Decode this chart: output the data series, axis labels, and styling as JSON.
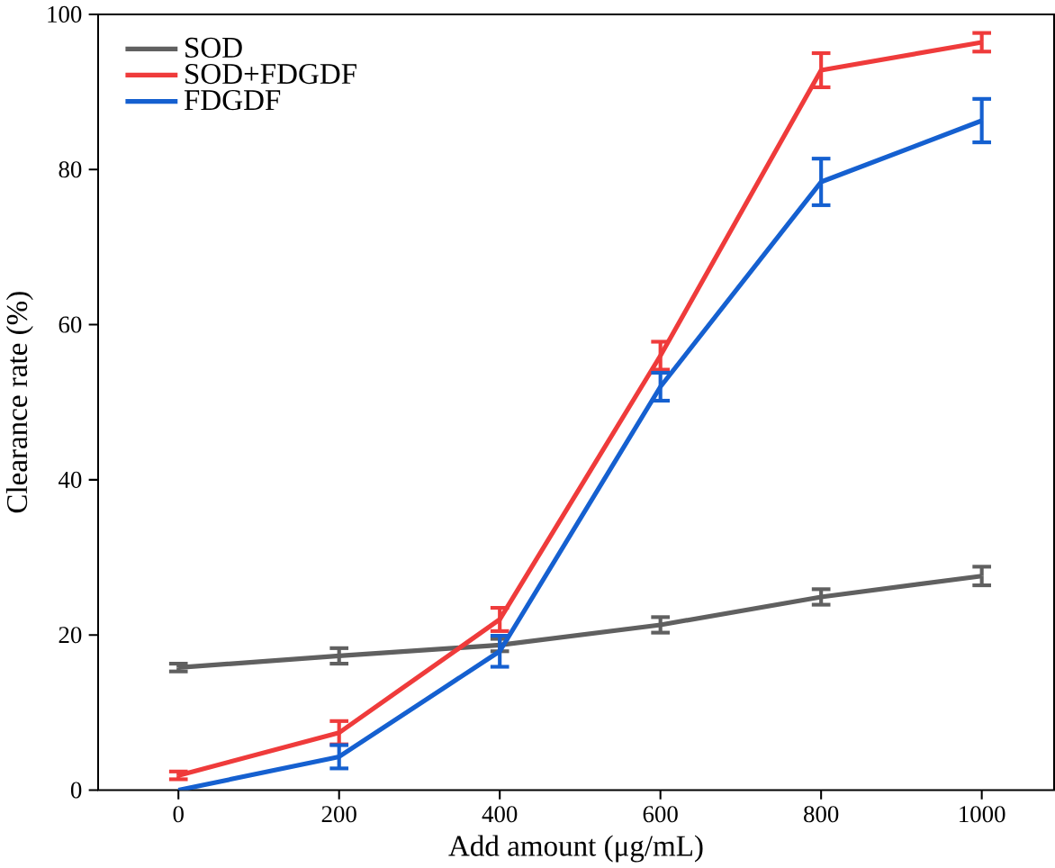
{
  "chart_data": {
    "type": "line",
    "xlabel": "Add amount (μg/mL)",
    "ylabel": "Clearance rate (%)",
    "x": [
      0,
      200,
      400,
      600,
      800,
      1000
    ],
    "series": [
      {
        "name": "SOD",
        "color": "#606060",
        "values": [
          15.8,
          17.3,
          18.7,
          21.3,
          24.9,
          27.6
        ],
        "errors": [
          0.5,
          1,
          0.8,
          1,
          1,
          1.2
        ]
      },
      {
        "name": "SOD+FDGDF",
        "color": "#ef3b3b",
        "values": [
          1.9,
          7.4,
          22,
          56,
          92.8,
          96.4
        ],
        "errors": [
          0.5,
          1.5,
          1.5,
          1.8,
          2.2,
          1.2
        ]
      },
      {
        "name": "FDGDF",
        "color": "#1560d0",
        "values": [
          0,
          4.3,
          17.9,
          52,
          78.4,
          86.3
        ],
        "errors": [
          null,
          1.5,
          2,
          1.8,
          3,
          2.8
        ]
      }
    ],
    "xlim": [
      -100,
      1090
    ],
    "ylim": [
      0,
      100
    ],
    "xticks": [
      0,
      200,
      400,
      600,
      800,
      1000
    ],
    "yticks": [
      0,
      20,
      40,
      60,
      80,
      100
    ],
    "legend": "top left",
    "grid": false,
    "marker": "none",
    "line_style": "solid"
  }
}
